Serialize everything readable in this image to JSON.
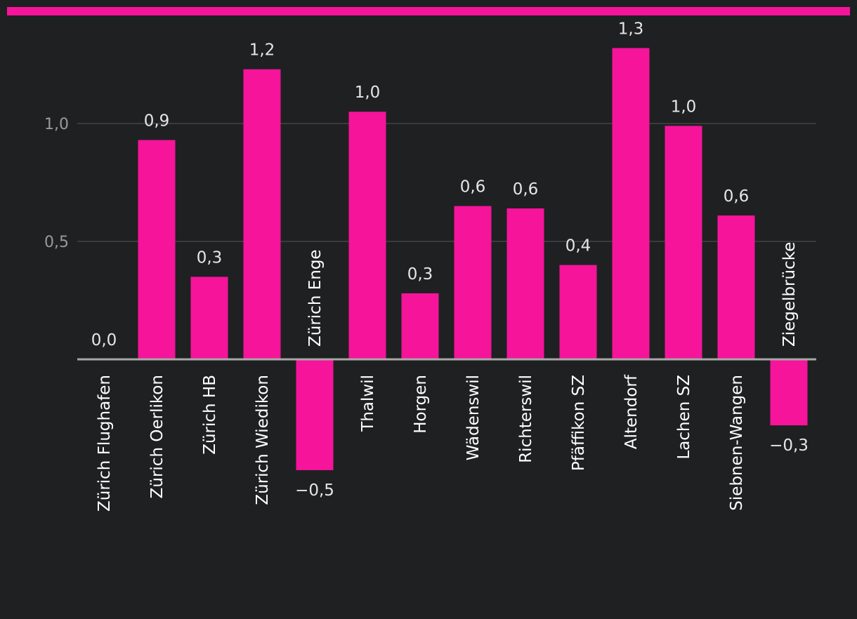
{
  "colors": {
    "background": "#1f2022",
    "accent": "#f5149a",
    "gridline": "#4a4a4a",
    "baseline": "#a8a8a8"
  },
  "chart_data": {
    "type": "bar",
    "title": "",
    "xlabel": "",
    "ylabel": "",
    "ylim": [
      -0.6,
      1.38
    ],
    "yticks": [
      0.5,
      1.0
    ],
    "ytick_labels": [
      "0,5",
      "1,0"
    ],
    "grid": true,
    "categories": [
      "Zürich Flughafen",
      "Zürich Oerlikon",
      "Zürich HB",
      "Zürich Wiedikon",
      "Zürich Enge",
      "Thalwil",
      "Horgen",
      "Wädenswil",
      "Richterswil",
      "Pfäffikon SZ",
      "Altendorf",
      "Lachen SZ",
      "Siebnen-Wangen",
      "Ziegelbrücke"
    ],
    "values": [
      0.0,
      0.93,
      0.35,
      1.23,
      -0.47,
      1.05,
      0.28,
      0.65,
      0.64,
      0.4,
      1.32,
      0.99,
      0.61,
      -0.28
    ],
    "value_labels": [
      "0,0",
      "0,9",
      "0,3",
      "1,2",
      "−0,5",
      "1,0",
      "0,3",
      "0,6",
      "0,6",
      "0,4",
      "1,3",
      "1,0",
      "0,6",
      "−0,3"
    ]
  }
}
